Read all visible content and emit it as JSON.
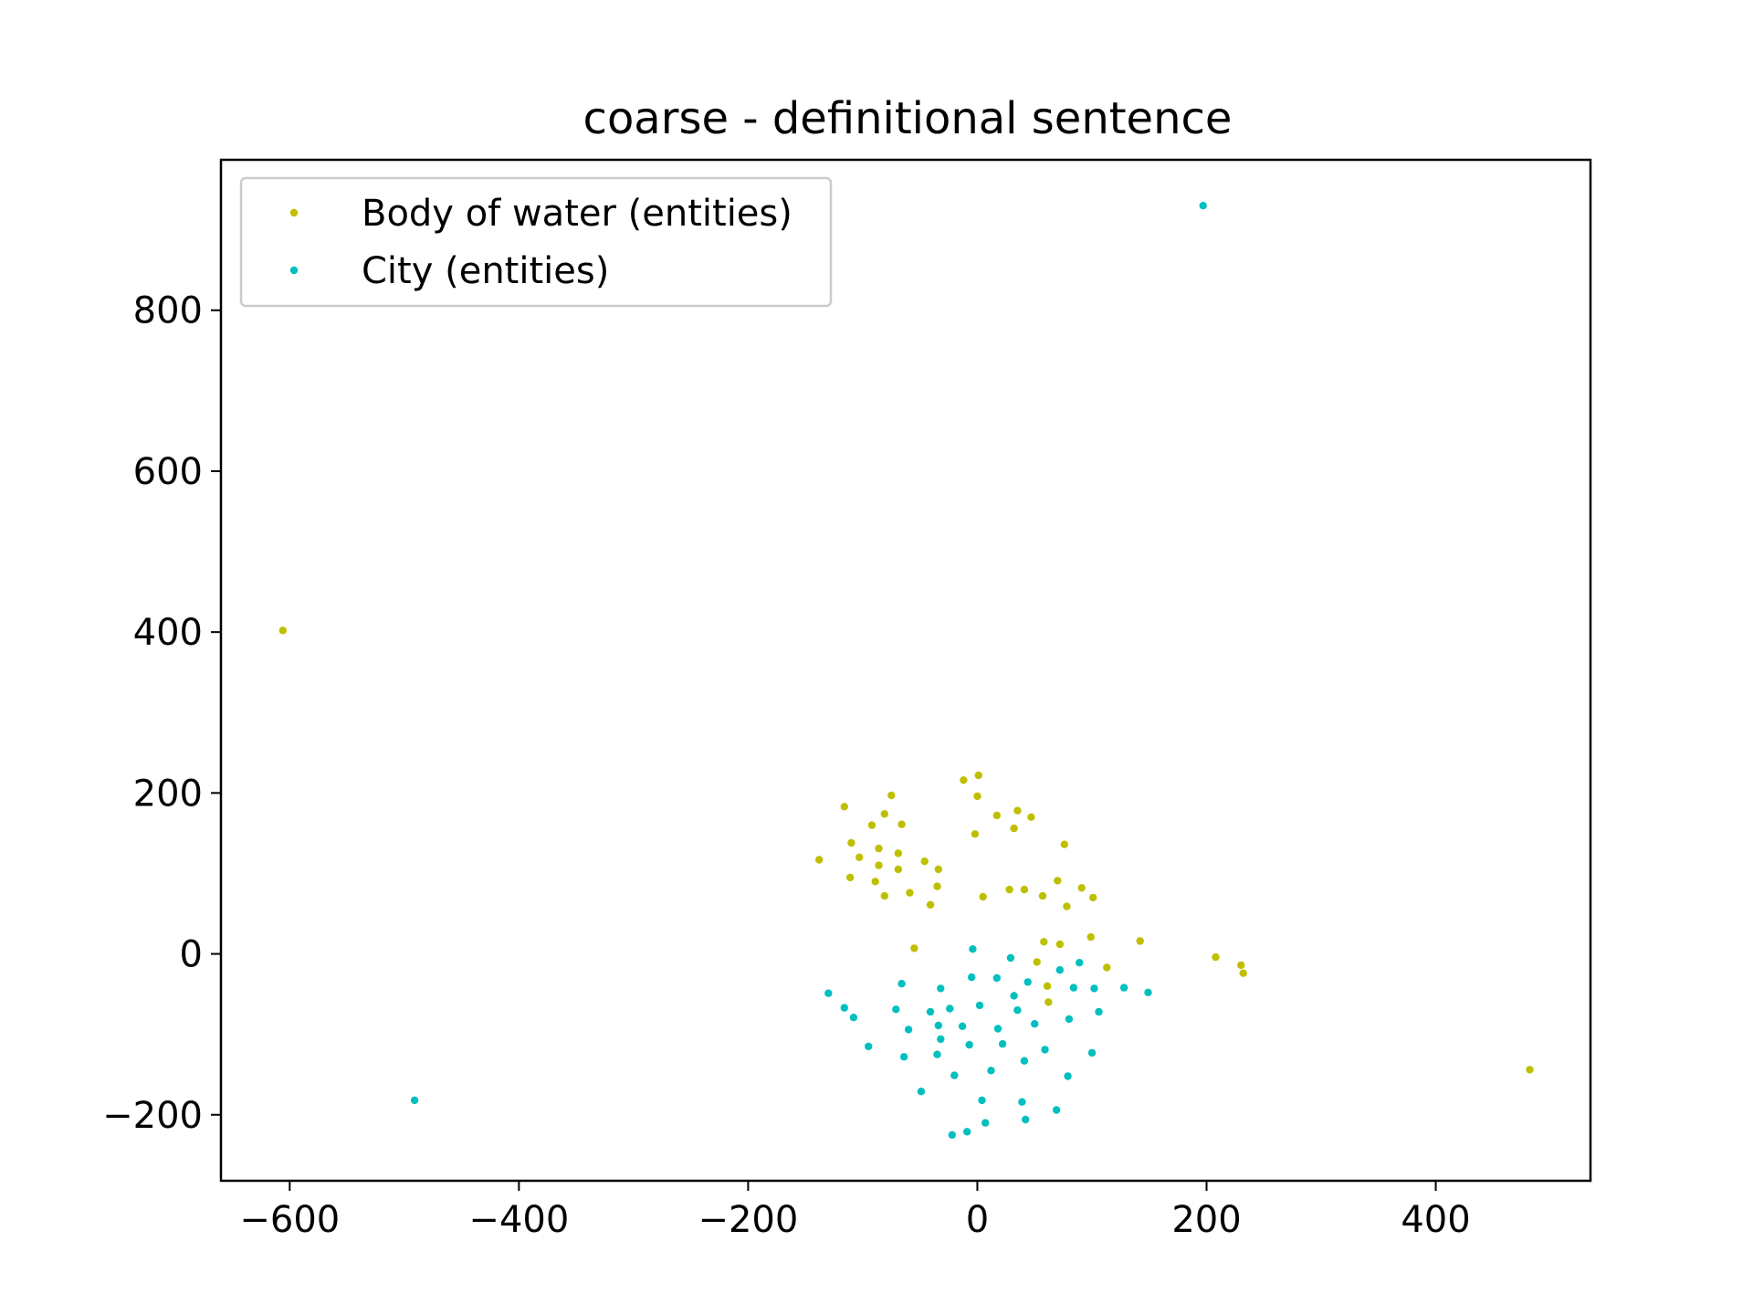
{
  "chart_data": {
    "type": "scatter",
    "title": "coarse - definitional sentence",
    "xlabel": "",
    "ylabel": "",
    "xlim": [
      -660,
      535
    ],
    "ylim": [
      -282,
      987
    ],
    "xticks": [
      -600,
      -400,
      -200,
      0,
      200,
      400
    ],
    "yticks": [
      -200,
      0,
      200,
      400,
      600,
      800
    ],
    "xtick_labels": [
      "−600",
      "−400",
      "−200",
      "0",
      "200",
      "400"
    ],
    "ytick_labels": [
      "−200",
      "0",
      "200",
      "400",
      "600",
      "800"
    ],
    "grid": false,
    "legend": "top-left",
    "series": [
      {
        "name": "Body of water (entities)",
        "color": "#bfbf00",
        "points": [
          [
            -606,
            402
          ],
          [
            -138,
            117
          ],
          [
            -116,
            183
          ],
          [
            -111,
            95
          ],
          [
            -110,
            138
          ],
          [
            -103,
            120
          ],
          [
            -92,
            160
          ],
          [
            -89,
            90
          ],
          [
            -86,
            110
          ],
          [
            -86,
            131
          ],
          [
            -81,
            174
          ],
          [
            -81,
            72
          ],
          [
            -75,
            197
          ],
          [
            -69,
            125
          ],
          [
            -69,
            105
          ],
          [
            -66,
            161
          ],
          [
            -59,
            76
          ],
          [
            -55,
            7
          ],
          [
            -46,
            115
          ],
          [
            -41,
            61
          ],
          [
            -35,
            84
          ],
          [
            -34,
            105
          ],
          [
            -12,
            216
          ],
          [
            -2,
            149
          ],
          [
            0,
            196
          ],
          [
            1,
            222
          ],
          [
            5,
            71
          ],
          [
            17,
            172
          ],
          [
            28,
            80
          ],
          [
            32,
            156
          ],
          [
            35,
            178
          ],
          [
            41,
            80
          ],
          [
            47,
            170
          ],
          [
            52,
            -10
          ],
          [
            57,
            72
          ],
          [
            58,
            15
          ],
          [
            61,
            -40
          ],
          [
            62,
            -60
          ],
          [
            70,
            91
          ],
          [
            72,
            12
          ],
          [
            76,
            136
          ],
          [
            78,
            59
          ],
          [
            91,
            82
          ],
          [
            99,
            21
          ],
          [
            101,
            70
          ],
          [
            113,
            -17
          ],
          [
            142,
            16
          ],
          [
            208,
            -4
          ],
          [
            230,
            -14
          ],
          [
            232,
            -24
          ],
          [
            482,
            -144
          ]
        ]
      },
      {
        "name": "City (entities)",
        "color": "#00bfbf",
        "points": [
          [
            -491,
            -182
          ],
          [
            -130,
            -49
          ],
          [
            -116,
            -67
          ],
          [
            -108,
            -79
          ],
          [
            -95,
            -115
          ],
          [
            -71,
            -69
          ],
          [
            -66,
            -37
          ],
          [
            -64,
            -128
          ],
          [
            -60,
            -94
          ],
          [
            -49,
            -171
          ],
          [
            -41,
            -72
          ],
          [
            -35,
            -125
          ],
          [
            -34,
            -89
          ],
          [
            -32,
            -43
          ],
          [
            -32,
            -106
          ],
          [
            -24,
            -68
          ],
          [
            -22,
            -225
          ],
          [
            -20,
            -151
          ],
          [
            -13,
            -90
          ],
          [
            -9,
            -221
          ],
          [
            -7,
            -113
          ],
          [
            -5,
            -29
          ],
          [
            -4,
            6
          ],
          [
            2,
            -64
          ],
          [
            4,
            -182
          ],
          [
            7,
            -210
          ],
          [
            12,
            -145
          ],
          [
            17,
            -30
          ],
          [
            18,
            -93
          ],
          [
            22,
            -112
          ],
          [
            29,
            -5
          ],
          [
            32,
            -52
          ],
          [
            35,
            -70
          ],
          [
            39,
            -184
          ],
          [
            41,
            -133
          ],
          [
            42,
            -206
          ],
          [
            44,
            -35
          ],
          [
            50,
            -87
          ],
          [
            59,
            -119
          ],
          [
            69,
            -194
          ],
          [
            72,
            -20
          ],
          [
            79,
            -152
          ],
          [
            80,
            -81
          ],
          [
            84,
            -42
          ],
          [
            89,
            -11
          ],
          [
            100,
            -123
          ],
          [
            102,
            -43
          ],
          [
            106,
            -72
          ],
          [
            128,
            -42
          ],
          [
            149,
            -48
          ],
          [
            197,
            930
          ]
        ]
      }
    ]
  }
}
